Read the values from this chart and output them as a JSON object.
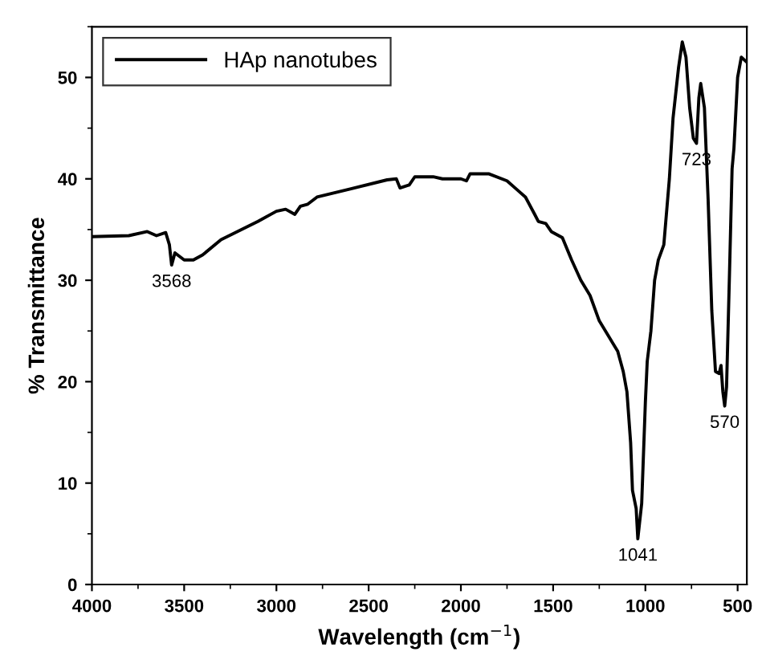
{
  "chart_data": {
    "type": "line",
    "xlabel": "Wavelength (cm$^{−1}$)",
    "ylabel": "% Transmittance",
    "x": [
      4000,
      3800,
      3700,
      3650,
      3600,
      3580,
      3568,
      3550,
      3500,
      3450,
      3400,
      3300,
      3100,
      3000,
      2950,
      2900,
      2870,
      2830,
      2780,
      2600,
      2400,
      2350,
      2330,
      2280,
      2250,
      2150,
      2100,
      2050,
      2000,
      1970,
      1950,
      1850,
      1750,
      1700,
      1650,
      1600,
      1580,
      1540,
      1510,
      1480,
      1450,
      1400,
      1350,
      1300,
      1250,
      1200,
      1150,
      1120,
      1100,
      1080,
      1070,
      1050,
      1041,
      1020,
      1000,
      990,
      970,
      950,
      930,
      900,
      870,
      850,
      820,
      800,
      780,
      760,
      740,
      723,
      710,
      700,
      680,
      660,
      640,
      620,
      600,
      590,
      580,
      570,
      560,
      545,
      530,
      520,
      500,
      480,
      450
    ],
    "series": [
      {
        "name": "HAp nanotubes",
        "color": "#000000",
        "values": [
          34.3,
          34.4,
          34.8,
          34.4,
          34.7,
          33.5,
          31.5,
          32.7,
          32.0,
          32.0,
          32.5,
          34.0,
          35.8,
          36.8,
          37.0,
          36.5,
          37.3,
          37.5,
          38.2,
          39.0,
          39.9,
          40.0,
          39.1,
          39.4,
          40.2,
          40.2,
          40.0,
          40.0,
          40.0,
          39.8,
          40.5,
          40.5,
          39.8,
          39.0,
          38.2,
          36.5,
          35.8,
          35.6,
          34.8,
          34.5,
          34.2,
          32.0,
          30.0,
          28.5,
          26.0,
          24.5,
          23.0,
          21,
          19,
          14,
          9.3,
          7.5,
          4.5,
          8,
          18,
          22,
          25,
          30,
          32,
          33.5,
          40,
          46,
          51,
          53.5,
          52,
          47,
          44,
          43.5,
          48,
          49.4,
          47,
          38,
          27,
          21,
          20.8,
          21.6,
          19,
          17.6,
          19.5,
          30,
          41,
          43,
          50,
          52,
          51.5
        ]
      }
    ],
    "xlim": [
      4000,
      450
    ],
    "ylim": [
      0,
      55
    ],
    "xticks": [
      4000,
      3500,
      3000,
      2500,
      2000,
      1500,
      1000,
      500
    ],
    "yticks": [
      0,
      10,
      20,
      30,
      40,
      50
    ],
    "grid": false,
    "legend": "top left",
    "marker": "none",
    "line_style": "solid",
    "annotations": [
      {
        "text": "3568",
        "x": 3568,
        "y": 31.5
      },
      {
        "text": "723",
        "x": 723,
        "y": 43.5
      },
      {
        "text": "570",
        "x": 570,
        "y": 17.6
      },
      {
        "text": "1041",
        "x": 1041,
        "y": 4.5
      }
    ]
  }
}
